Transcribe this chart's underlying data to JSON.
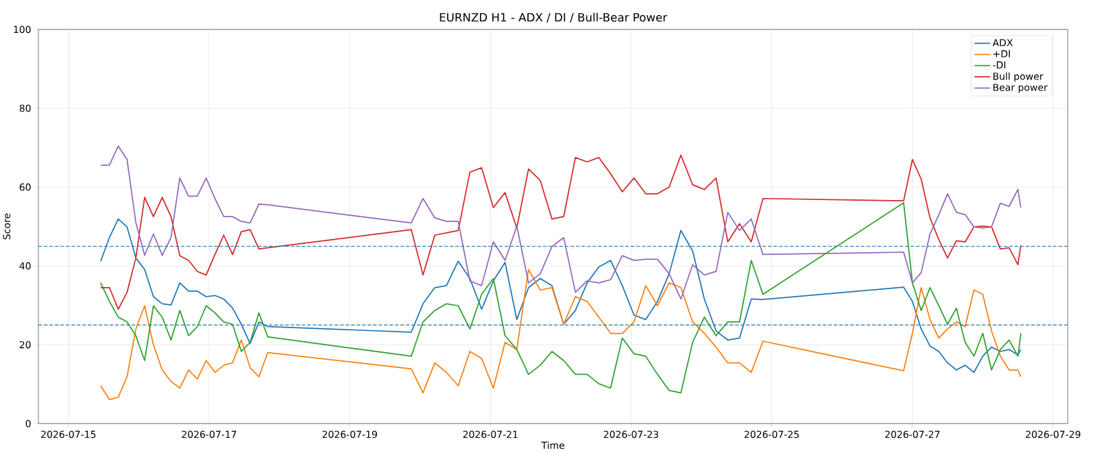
{
  "chart_data": {
    "type": "line",
    "title": "EURNZD H1 - ADX / DI / Bull-Bear Power",
    "xlabel": "Time",
    "ylabel": "Score",
    "x": [
      "2026-07-15T11:00",
      "2026-07-15T14:00",
      "2026-07-15T17:00",
      "2026-07-15T20:00",
      "2026-07-15T23:00",
      "2026-07-16T02:00",
      "2026-07-16T05:00",
      "2026-07-16T08:00",
      "2026-07-16T11:00",
      "2026-07-16T14:00",
      "2026-07-16T17:00",
      "2026-07-16T20:00",
      "2026-07-16T23:00",
      "2026-07-17T02:00",
      "2026-07-17T05:00",
      "2026-07-17T08:00",
      "2026-07-17T11:00",
      "2026-07-17T14:00",
      "2026-07-17T17:00",
      "2026-07-17T20:00",
      "2026-07-19T21:00",
      "2026-07-20T01:00",
      "2026-07-20T05:00",
      "2026-07-20T09:00",
      "2026-07-20T13:00",
      "2026-07-20T17:00",
      "2026-07-20T21:00",
      "2026-07-21T01:00",
      "2026-07-21T05:00",
      "2026-07-21T09:00",
      "2026-07-21T13:00",
      "2026-07-21T17:00",
      "2026-07-21T21:00",
      "2026-07-22T01:00",
      "2026-07-22T05:00",
      "2026-07-22T09:00",
      "2026-07-22T13:00",
      "2026-07-22T17:00",
      "2026-07-22T21:00",
      "2026-07-23T01:00",
      "2026-07-23T05:00",
      "2026-07-23T09:00",
      "2026-07-23T13:00",
      "2026-07-23T17:00",
      "2026-07-23T21:00",
      "2026-07-24T01:00",
      "2026-07-24T05:00",
      "2026-07-24T09:00",
      "2026-07-24T13:00",
      "2026-07-24T17:00",
      "2026-07-24T21:00",
      "2026-07-26T21:00",
      "2026-07-27T00:00",
      "2026-07-27T03:00",
      "2026-07-27T06:00",
      "2026-07-27T09:00",
      "2026-07-27T12:00",
      "2026-07-27T15:00",
      "2026-07-27T18:00",
      "2026-07-27T21:00",
      "2026-07-28T00:00",
      "2026-07-28T03:00",
      "2026-07-28T06:00",
      "2026-07-28T09:00",
      "2026-07-28T12:00",
      "2026-07-28T13:00"
    ],
    "series": [
      {
        "name": "ADX",
        "color": "#1f77b4",
        "values": [
          41.2,
          47.2,
          51.9,
          49.9,
          42,
          39.1,
          32.2,
          30.4,
          30.1,
          35.7,
          33.6,
          33.6,
          32.2,
          32.5,
          31.6,
          29.3,
          25.2,
          20.3,
          25.8,
          24.6,
          23.2,
          30.4,
          34.5,
          35,
          41.2,
          36.8,
          29,
          36.2,
          40.9,
          26.4,
          34.5,
          36.8,
          35,
          25.2,
          28.7,
          35.7,
          39.7,
          41.4,
          35,
          27.5,
          26.4,
          31,
          38,
          49,
          43.8,
          31.6,
          23.5,
          21.2,
          21.7,
          31.6,
          31.5,
          34.6,
          31,
          24,
          19.7,
          18.3,
          15.4,
          13.6,
          14.8,
          13,
          17.1,
          19.4,
          18.3,
          18.8,
          17.4,
          18.8
        ]
      },
      {
        "name": "+DI",
        "color": "#ff7f0e",
        "values": [
          9.6,
          6.1,
          6.7,
          11.9,
          24,
          29.9,
          20,
          13.6,
          10.7,
          9,
          13.6,
          11.3,
          16,
          13,
          14.8,
          15.4,
          21.2,
          14.2,
          11.9,
          18,
          13.9,
          7.8,
          15.4,
          13,
          9.6,
          18.3,
          16.5,
          9,
          20.6,
          18.8,
          39.1,
          33.9,
          34.5,
          25.2,
          32.2,
          31,
          27,
          22.9,
          22.9,
          25.8,
          35,
          29.9,
          35.7,
          34.5,
          25.8,
          22.9,
          19.4,
          15.4,
          15.4,
          13,
          20.9,
          13.4,
          22.9,
          34.5,
          26.4,
          21.7,
          24,
          25.8,
          24.6,
          33.9,
          32.8,
          23.5,
          17.1,
          13.6,
          13.6,
          11.9
        ]
      },
      {
        "name": "-DI",
        "color": "#2ca02c",
        "values": [
          35.7,
          31,
          27,
          25.8,
          22.3,
          16,
          29.9,
          27,
          21.2,
          28.7,
          22.3,
          24.6,
          29.9,
          28.1,
          25.8,
          25.2,
          18.3,
          20.6,
          28.1,
          22,
          17.1,
          25.8,
          28.7,
          30.4,
          29.9,
          24,
          32.8,
          36.8,
          22.3,
          18.8,
          12.5,
          14.8,
          18.3,
          16,
          12.5,
          12.5,
          10.1,
          9,
          21.7,
          17.7,
          17.1,
          12.5,
          8.4,
          7.8,
          20.6,
          27,
          22.3,
          25.8,
          25.8,
          41.4,
          32.8,
          56,
          35.7,
          28.7,
          34.5,
          29.9,
          25.2,
          29.3,
          20.6,
          17.1,
          22.9,
          13.6,
          18.8,
          21.2,
          17.1,
          22.9
        ]
      },
      {
        "name": "Bull power",
        "color": "#d62728",
        "values": [
          34.5,
          34.5,
          29,
          33.3,
          42,
          57.4,
          52.5,
          57.4,
          52.5,
          42.6,
          41.4,
          38.6,
          37.7,
          42.9,
          47.8,
          42.9,
          48.7,
          49.2,
          44.3,
          44.6,
          49.2,
          37.7,
          47.8,
          48.4,
          49,
          63.8,
          64.9,
          54.8,
          58.6,
          49.6,
          64.6,
          61.7,
          51.9,
          52.5,
          67.5,
          66.4,
          67.5,
          63.4,
          58.8,
          62.3,
          58.3,
          58.3,
          60,
          68.1,
          60.6,
          59.4,
          62.3,
          46.1,
          50.7,
          46.1,
          57.1,
          56.5,
          67,
          62,
          52.2,
          46.7,
          42,
          46.4,
          46.1,
          49.9,
          50.1,
          49.9,
          44.3,
          44.6,
          40.3,
          45.2
        ]
      },
      {
        "name": "Bear power",
        "color": "#9467bd",
        "values": [
          65.5,
          65.6,
          70.4,
          67,
          51,
          42.7,
          48.1,
          42.7,
          47.2,
          62.3,
          57.7,
          57.7,
          62.3,
          57.1,
          52.5,
          52.5,
          51.3,
          50.9,
          55.7,
          55.5,
          50.9,
          57.1,
          52.2,
          51.3,
          51.3,
          36.2,
          35,
          46.1,
          41.4,
          50.1,
          35.7,
          38,
          44.9,
          47.2,
          33.3,
          36.2,
          35.7,
          36.5,
          42.6,
          41.4,
          41.7,
          41.7,
          38,
          31.6,
          40.3,
          37.7,
          38.6,
          53.6,
          49,
          51.9,
          42.9,
          43.5,
          35.7,
          38.3,
          48.1,
          53,
          58.3,
          53.6,
          53,
          49.9,
          49.6,
          49.9,
          55.9,
          55.1,
          59.4,
          54.8
        ]
      }
    ],
    "xlim": [
      "2026-07-14T13:45",
      "2026-07-29T05:00"
    ],
    "xticks": [
      "2026-07-15",
      "2026-07-17",
      "2026-07-19",
      "2026-07-21",
      "2026-07-23",
      "2026-07-25",
      "2026-07-27",
      "2026-07-29"
    ],
    "ylim": [
      0,
      100
    ],
    "yticks": [
      0,
      20,
      40,
      60,
      80,
      100
    ],
    "ref_lines": [
      {
        "axis": "y",
        "value": 45,
        "color": "#1f77b4",
        "line_style": "dashed"
      },
      {
        "axis": "y",
        "value": 25,
        "color": "#1f77b4",
        "line_style": "dashed"
      }
    ],
    "grid": true,
    "legend": "top right"
  }
}
